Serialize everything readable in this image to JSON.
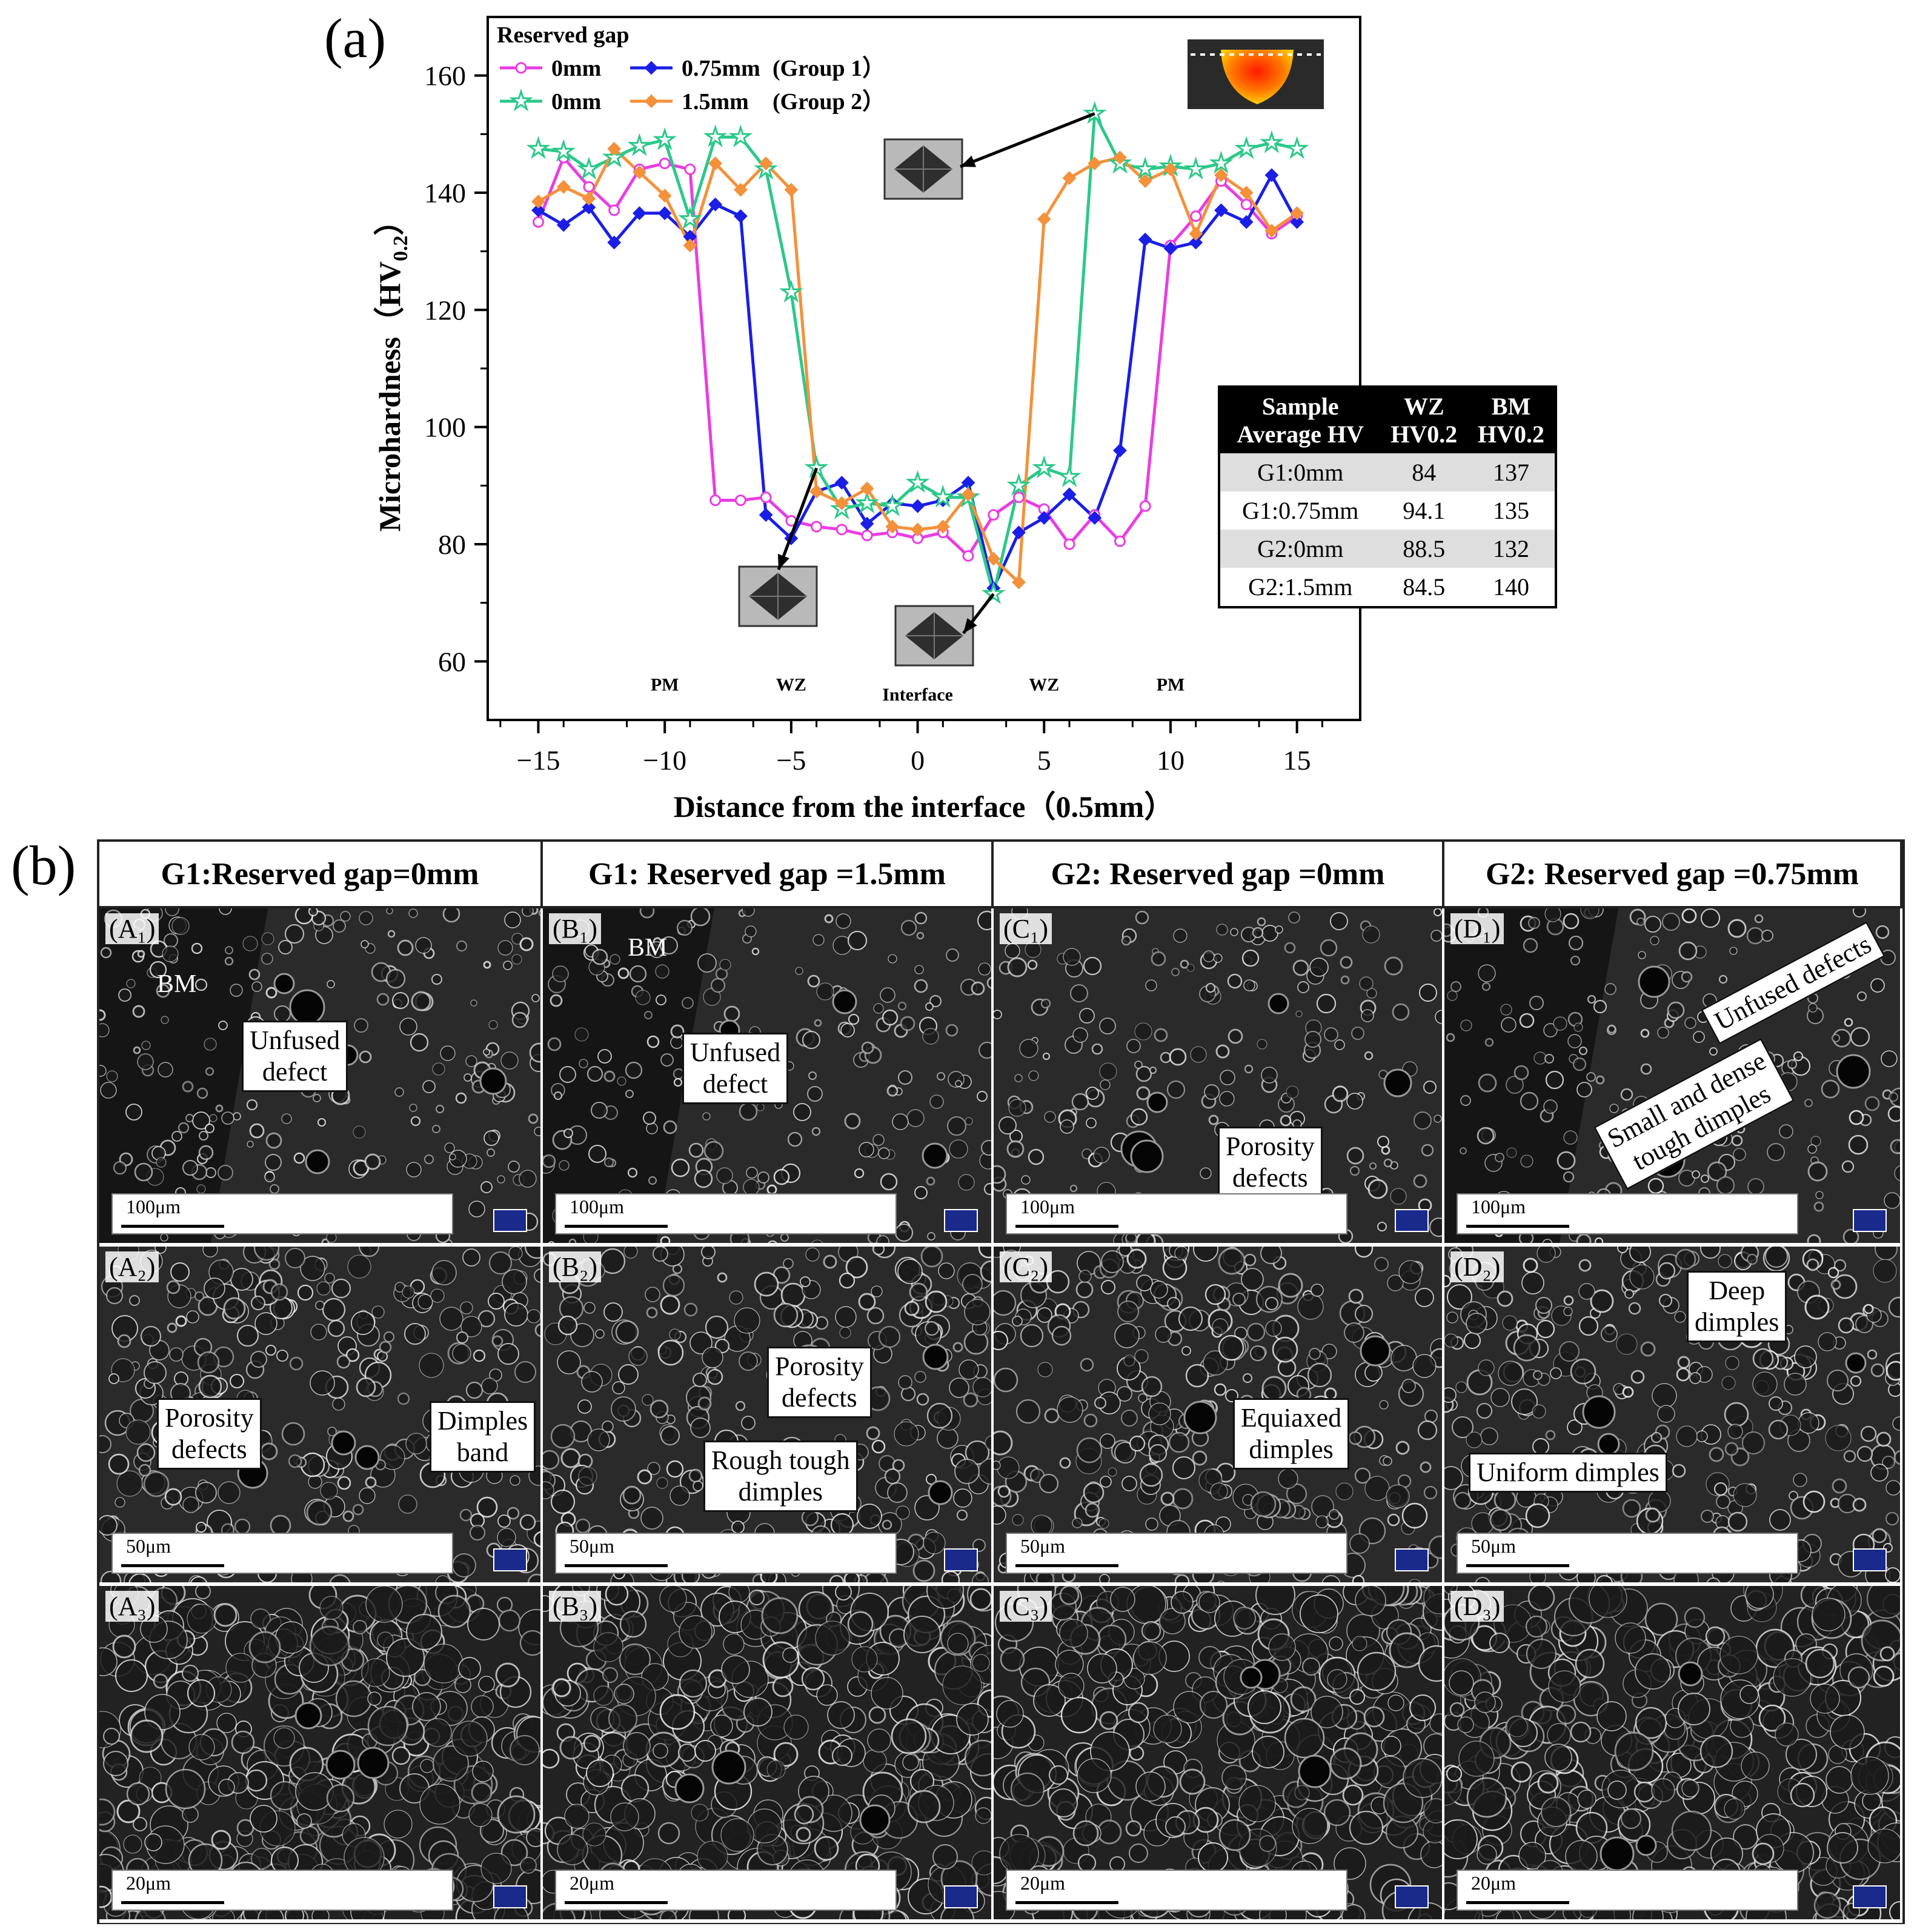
{
  "panel_a_label": "(a)",
  "panel_b_label": "(b)",
  "chart_data": {
    "type": "line",
    "xlabel": "Distance from the interface（0.5mm）",
    "ylabel_main": "Microhardness（HV",
    "ylabel_sub": "0.2",
    "ylabel_end": "）",
    "xlim": [
      -17,
      17.5
    ],
    "ylim": [
      50,
      170
    ],
    "xticks": [
      -15,
      -10,
      -5,
      0,
      5,
      10,
      15
    ],
    "yticks": [
      60,
      80,
      100,
      120,
      140,
      160
    ],
    "legend_title": "Reserved gap",
    "legend_groups": [
      "(Group 1）",
      "(Group 2）"
    ],
    "zone_labels": [
      {
        "text": "PM",
        "x": -10
      },
      {
        "text": "WZ",
        "x": -5
      },
      {
        "text": "Interface",
        "x": 0
      },
      {
        "text": "WZ",
        "x": 5
      },
      {
        "text": "PM",
        "x": 10
      }
    ],
    "x": [
      -15,
      -14,
      -13,
      -12,
      -11,
      -10,
      -9,
      -8,
      -7,
      -6,
      -5,
      -4,
      -3,
      -2,
      -1,
      0,
      1,
      2,
      3,
      4,
      5,
      6,
      7,
      8,
      9,
      10,
      11,
      12,
      13,
      14,
      15
    ],
    "series": [
      {
        "name": "0mm",
        "color": "#e93de3",
        "marker": "circle",
        "values": [
          135,
          146,
          141,
          137,
          144,
          145,
          144,
          87.5,
          87.5,
          88,
          84,
          83,
          82.5,
          81.5,
          82,
          81,
          82,
          78,
          85,
          88,
          86,
          80,
          85,
          80.5,
          86.5,
          131,
          136,
          142,
          138,
          133,
          136
        ]
      },
      {
        "name": "0.75mm",
        "color": "#1a1ee6",
        "marker": "diamond",
        "values": [
          137,
          134.5,
          137.5,
          131.5,
          136.5,
          136.5,
          132.5,
          138,
          136,
          85,
          81,
          89,
          90.5,
          83.5,
          87,
          86.5,
          87.5,
          90.5,
          72.5,
          82,
          84.5,
          88.5,
          84.5,
          96,
          132,
          130.5,
          131.5,
          137,
          135,
          143,
          135
        ]
      },
      {
        "name": "0mm",
        "color": "#2bc989",
        "marker": "star",
        "values": [
          147.5,
          147,
          144,
          146,
          148,
          149,
          135.5,
          149.5,
          149.5,
          144,
          123,
          93,
          86,
          87,
          86.5,
          90.5,
          88,
          88,
          71.5,
          90,
          93,
          91.5,
          153.5,
          145,
          144,
          144.5,
          144,
          145,
          147.5,
          148.5,
          147.5
        ]
      },
      {
        "name": "1.5mm",
        "color": "#f4913a",
        "marker": "diamond",
        "values": [
          138.5,
          141,
          139,
          147.5,
          143.5,
          139.5,
          131,
          145,
          140.5,
          145,
          140.5,
          89,
          87,
          89.5,
          83,
          82.5,
          83,
          88.5,
          77.5,
          73.5,
          135.5,
          142.5,
          145,
          146,
          142,
          144,
          133,
          143,
          140,
          133.5,
          136.5
        ]
      }
    ],
    "table": {
      "header": [
        [
          "Sample",
          "Average HV"
        ],
        [
          "WZ",
          "HV0.2"
        ],
        [
          "BM",
          "HV0.2"
        ]
      ],
      "rows": [
        [
          "G1:0mm",
          "84",
          "137"
        ],
        [
          "G1:0.75mm",
          "94.1",
          "135"
        ],
        [
          "G2:0mm",
          "88.5",
          "132"
        ],
        [
          "G2:1.5mm",
          "84.5",
          "140"
        ]
      ]
    }
  },
  "sem": {
    "columns": [
      "G1:Reserved gap=0mm",
      "G1: Reserved gap =1.5mm",
      "G2: Reserved gap =0mm",
      "G2: Reserved gap =0.75mm"
    ],
    "cells": [
      {
        "id": "(A₁)",
        "labels": [
          "BM",
          "Unfused\ndefect"
        ],
        "scale": "100μm"
      },
      {
        "id": "(B₁)",
        "labels": [
          "BM",
          "Unfused\ndefect"
        ],
        "scale": "100μm"
      },
      {
        "id": "(C₁)",
        "labels": [
          "Porosity\ndefects"
        ],
        "scale": "100μm"
      },
      {
        "id": "(D₁)",
        "labels": [
          "Unfused defects",
          "Small and dense\ntough dimples"
        ],
        "scale": "100μm"
      },
      {
        "id": "(A₂)",
        "labels": [
          "Porosity\ndefects",
          "Dimples\nband"
        ],
        "scale": "50μm"
      },
      {
        "id": "(B₂)",
        "labels": [
          "Porosity\ndefects",
          "Rough tough\ndimples"
        ],
        "scale": "50μm"
      },
      {
        "id": "(C₂)",
        "labels": [
          "Equiaxed\ndimples"
        ],
        "scale": "50μm"
      },
      {
        "id": "(D₂)",
        "labels": [
          "Deep\ndimples",
          "Uniform dimples"
        ],
        "scale": "50μm"
      },
      {
        "id": "(A₃)",
        "labels": [],
        "scale": "20μm"
      },
      {
        "id": "(B₃)",
        "labels": [],
        "scale": "20μm"
      },
      {
        "id": "(C₃)",
        "labels": [],
        "scale": "20μm"
      },
      {
        "id": "(D₃)",
        "labels": [],
        "scale": "20μm"
      }
    ]
  }
}
